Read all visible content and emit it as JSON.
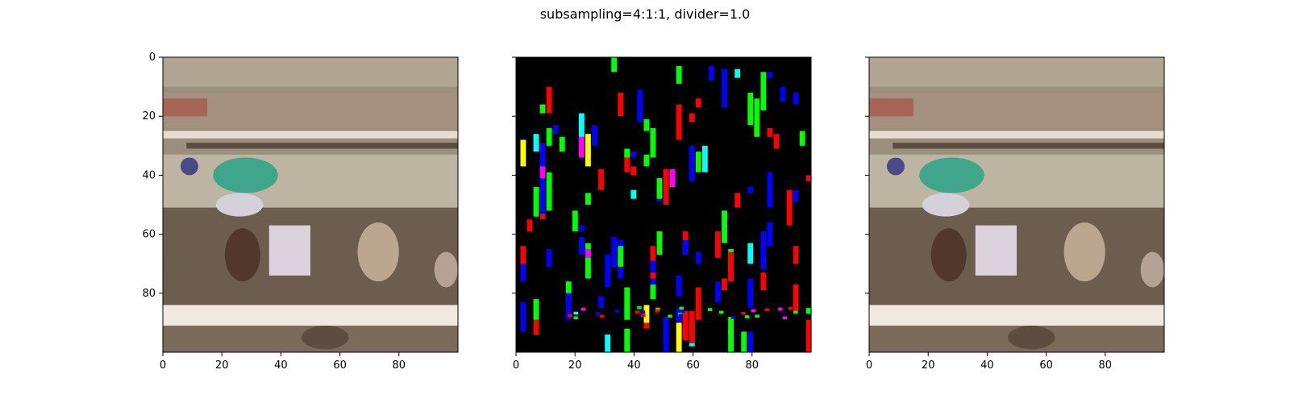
{
  "figure": {
    "title": "subsampling=4:1:1, divider=1.0"
  },
  "chart_data": [
    {
      "type": "heatmap",
      "title": "",
      "content": "RGB image – reconstructed video frame",
      "xlim": [
        0,
        100
      ],
      "ylim": [
        100,
        0
      ],
      "xticks": [
        0,
        20,
        40,
        60,
        80
      ],
      "yticks": [
        0,
        20,
        40,
        60,
        80
      ],
      "show_yticklabels": true,
      "grid": false
    },
    {
      "type": "heatmap",
      "title": "",
      "content": "Difference mask – black background with red, green, blue, cyan, magenta and yellow blocks",
      "xlim": [
        0,
        100
      ],
      "ylim": [
        100,
        0
      ],
      "xticks": [
        0,
        20,
        40,
        60,
        80
      ],
      "yticks": [
        0,
        20,
        40,
        60,
        80
      ],
      "show_yticklabels": false,
      "grid": false,
      "palette": [
        "#ff0000",
        "#00ff00",
        "#0000ff",
        "#00ffff",
        "#ff00ff",
        "#ffff00"
      ]
    },
    {
      "type": "heatmap",
      "title": "",
      "content": "RGB image – original video frame",
      "xlim": [
        0,
        100
      ],
      "ylim": [
        100,
        0
      ],
      "xticks": [
        0,
        20,
        40,
        60,
        80
      ],
      "yticks": [
        0,
        20,
        40,
        60,
        80
      ],
      "show_yticklabels": false,
      "grid": false
    }
  ]
}
